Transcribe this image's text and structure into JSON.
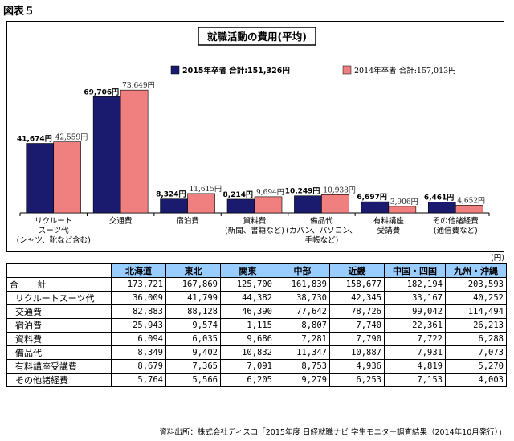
{
  "figure_label": "図表５",
  "chart_data": {
    "type": "bar",
    "title": "就職活動の費用(平均)",
    "categories": [
      [
        "リクルート",
        "スーツ代",
        "(シャツ、靴など含む)"
      ],
      [
        "交通費"
      ],
      [
        "宿泊費"
      ],
      [
        "資料費",
        "(新聞、書籍など)"
      ],
      [
        "備品代",
        "(カバン、パソコン、",
        "手帳など)"
      ],
      [
        "有料講座",
        "受講費"
      ],
      [
        "その他諸経費",
        "(通信費など)"
      ]
    ],
    "series": [
      {
        "name": "2015年卒者 合計:151,326円",
        "color": "#1a1a6e",
        "values": [
          41674,
          69706,
          8324,
          8214,
          10249,
          6697,
          6461
        ],
        "labels": [
          "41,674円",
          "69,706円",
          "8,324円",
          "8,214円",
          "10,249円",
          "6,697円",
          "6,461円"
        ]
      },
      {
        "name": "2014年卒者 合計:157,013円",
        "color": "#f08080",
        "values": [
          42559,
          73649,
          11615,
          9694,
          10938,
          3906,
          4652
        ],
        "labels": [
          "42,559円",
          "73,649円",
          "11,615円",
          "9,694円",
          "10,938円",
          "3,906円",
          "4,652円"
        ]
      }
    ],
    "ylim": [
      0,
      80000
    ],
    "grid": false,
    "legend": "top-right"
  },
  "table": {
    "unit": "(円)",
    "columns": [
      "北海道",
      "東北",
      "関東",
      "中部",
      "近畿",
      "中国・四国",
      "九州・沖縄"
    ],
    "rows": [
      {
        "label": "合 計",
        "values": [
          "173,721",
          "167,869",
          "125,700",
          "161,839",
          "158,677",
          "182,194",
          "203,593"
        ]
      },
      {
        "label": "リクルートスーツ代",
        "values": [
          "36,009",
          "41,799",
          "44,382",
          "38,730",
          "42,345",
          "33,167",
          "40,252"
        ]
      },
      {
        "label": "交通費",
        "values": [
          "82,883",
          "88,128",
          "46,390",
          "77,642",
          "78,726",
          "99,042",
          "114,494"
        ]
      },
      {
        "label": "宿泊費",
        "values": [
          "25,943",
          "9,574",
          "1,115",
          "8,807",
          "7,740",
          "22,361",
          "26,213"
        ]
      },
      {
        "label": "資料費",
        "values": [
          "6,094",
          "6,035",
          "9,686",
          "7,281",
          "7,790",
          "7,722",
          "6,288"
        ]
      },
      {
        "label": "備品代",
        "values": [
          "8,349",
          "9,402",
          "10,832",
          "11,347",
          "10,887",
          "7,931",
          "7,073"
        ]
      },
      {
        "label": "有料講座受講費",
        "values": [
          "8,679",
          "7,365",
          "7,091",
          "8,753",
          "4,936",
          "4,819",
          "5,270"
        ]
      },
      {
        "label": "その他諸経費",
        "values": [
          "5,764",
          "5,566",
          "6,205",
          "9,279",
          "6,253",
          "7,153",
          "4,003"
        ]
      }
    ]
  },
  "source": "資料出所：株式会社ディスコ「2015年度 日経就職ナビ 学生モニター調査結果（2014年10月発行）」"
}
